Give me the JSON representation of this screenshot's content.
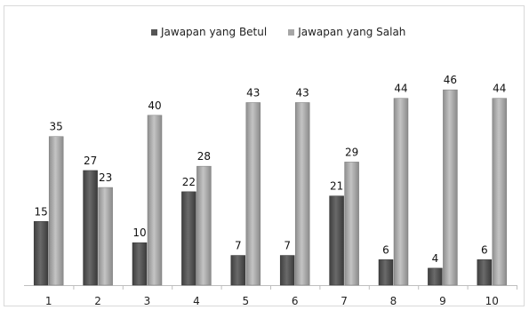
{
  "chart_data": {
    "type": "bar",
    "categories": [
      "1",
      "2",
      "3",
      "4",
      "5",
      "6",
      "7",
      "8",
      "9",
      "10"
    ],
    "series": [
      {
        "name": "Jawapan yang Betul",
        "values": [
          15,
          27,
          10,
          22,
          7,
          7,
          21,
          6,
          4,
          6
        ],
        "color": "#555555"
      },
      {
        "name": "Jawapan yang Salah",
        "values": [
          35,
          23,
          40,
          28,
          43,
          43,
          29,
          44,
          46,
          44
        ],
        "color": "#a6a6a6"
      }
    ],
    "title": "",
    "xlabel": "",
    "ylabel": "",
    "ylim": [
      0,
      50
    ],
    "grid": false,
    "legend_position": "top-center"
  }
}
